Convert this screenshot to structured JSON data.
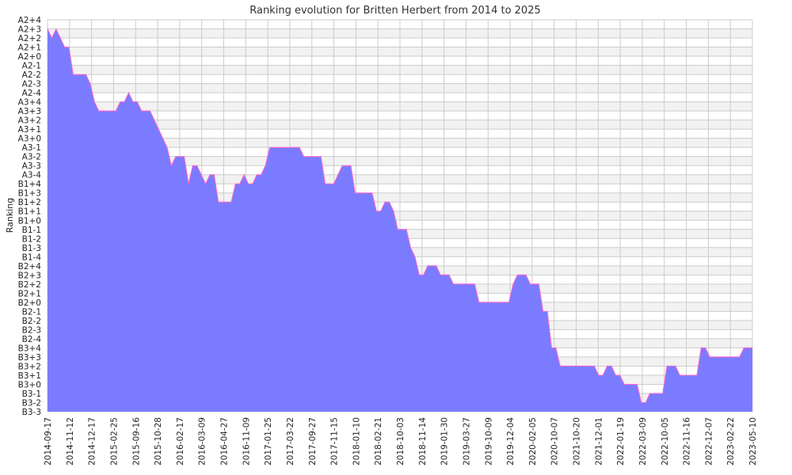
{
  "chart_data": {
    "type": "area",
    "title": "Ranking evolution for Britten Herbert from 2014 to 2025",
    "xlabel": "",
    "ylabel": "Ranking",
    "y_categories": [
      "A2+4",
      "A2+3",
      "A2+2",
      "A2+1",
      "A2+0",
      "A2-1",
      "A2-2",
      "A2-3",
      "A2-4",
      "A3+4",
      "A3+3",
      "A3+2",
      "A3+1",
      "A3+0",
      "A3-1",
      "A3-2",
      "A3-3",
      "A3-4",
      "B1+4",
      "B1+3",
      "B1+2",
      "B1+1",
      "B1+0",
      "B1-1",
      "B1-2",
      "B1-3",
      "B1-4",
      "B2+4",
      "B2+3",
      "B2+2",
      "B2+1",
      "B2+0",
      "B2-1",
      "B2-2",
      "B2-3",
      "B2-4",
      "B3+4",
      "B3+3",
      "B3+2",
      "B3+1",
      "B3+0",
      "B3-1",
      "B3-2",
      "B3-3"
    ],
    "x_tick_labels": [
      "2014-09-17",
      "2014-11-12",
      "2014-12-17",
      "2015-02-25",
      "2015-09-16",
      "2015-10-28",
      "2016-02-17",
      "2016-03-09",
      "2016-04-27",
      "2016-11-09",
      "2017-01-25",
      "2017-03-22",
      "2017-09-27",
      "2017-11-15",
      "2018-01-10",
      "2018-02-21",
      "2018-10-03",
      "2018-11-14",
      "2019-01-30",
      "2019-03-27",
      "2019-10-09",
      "2019-12-04",
      "2020-02-05",
      "2020-10-07",
      "2021-10-20",
      "2021-12-01",
      "2022-01-19",
      "2022-03-09",
      "2022-10-05",
      "2022-11-16",
      "2022-12-07",
      "2023-02-22",
      "2023-05-10"
    ],
    "series": [
      {
        "values": [
          "A2+3",
          "A2+2",
          "A2+3",
          "A2+2",
          "A2+1",
          "A2+1",
          "A2-2",
          "A2-2",
          "A2-2",
          "A2-2",
          "A2-3",
          "A3+4",
          "A3+3",
          "A3+3",
          "A3+3",
          "A3+3",
          "A3+3",
          "A3+4",
          "A3+4",
          "A2-4",
          "A3+4",
          "A3+4",
          "A3+3",
          "A3+3",
          "A3+3",
          "A3+2",
          "A3+1",
          "A3+0",
          "A3-1",
          "A3-3",
          "A3-2",
          "A3-2",
          "A3-2",
          "B1+4",
          "A3-3",
          "A3-3",
          "A3-4",
          "B1+4",
          "A3-4",
          "A3-4",
          "B1+2",
          "B1+2",
          "B1+2",
          "B1+2",
          "B1+4",
          "B1+4",
          "A3-4",
          "B1+4",
          "B1+4",
          "A3-4",
          "A3-4",
          "A3-3",
          "A3-1",
          "A3-1",
          "A3-1",
          "A3-1",
          "A3-1",
          "A3-1",
          "A3-1",
          "A3-1",
          "A3-2",
          "A3-2",
          "A3-2",
          "A3-2",
          "A3-2",
          "B1+4",
          "B1+4",
          "B1+4",
          "A3-4",
          "A3-3",
          "A3-3",
          "A3-3",
          "B1+3",
          "B1+3",
          "B1+3",
          "B1+3",
          "B1+3",
          "B1+1",
          "B1+1",
          "B1+2",
          "B1+2",
          "B1+1",
          "B1-1",
          "B1-1",
          "B1-1",
          "B1-3",
          "B1-4",
          "B2+3",
          "B2+3",
          "B2+4",
          "B2+4",
          "B2+4",
          "B2+3",
          "B2+3",
          "B2+3",
          "B2+2",
          "B2+2",
          "B2+2",
          "B2+2",
          "B2+2",
          "B2+2",
          "B2+0",
          "B2+0",
          "B2+0",
          "B2+0",
          "B2+0",
          "B2+0",
          "B2+0",
          "B2+0",
          "B2+2",
          "B2+3",
          "B2+3",
          "B2+3",
          "B2+2",
          "B2+2",
          "B2+2",
          "B2-1",
          "B2-1",
          "B3+4",
          "B3+4",
          "B3+2",
          "B3+2",
          "B3+2",
          "B3+2",
          "B3+2",
          "B3+2",
          "B3+2",
          "B3+2",
          "B3+2",
          "B3+1",
          "B3+1",
          "B3+2",
          "B3+2",
          "B3+1",
          "B3+1",
          "B3+0",
          "B3+0",
          "B3+0",
          "B3+0",
          "B3-2",
          "B3-2",
          "B3-1",
          "B3-1",
          "B3-1",
          "B3-1",
          "B3+2",
          "B3+2",
          "B3+2",
          "B3+1",
          "B3+1",
          "B3+1",
          "B3+1",
          "B3+1",
          "B3+4",
          "B3+4",
          "B3+3",
          "B3+3",
          "B3+3",
          "B3+3",
          "B3+3",
          "B3+3",
          "B3+3",
          "B3+3",
          "B3+4",
          "B3+4",
          "B3+4"
        ]
      }
    ],
    "grid": true,
    "legend": "none",
    "colors": {
      "fill": "#7b7bff",
      "line": "#ff66cc",
      "grid": "#cccccc",
      "band": "#f2f2f2"
    }
  }
}
